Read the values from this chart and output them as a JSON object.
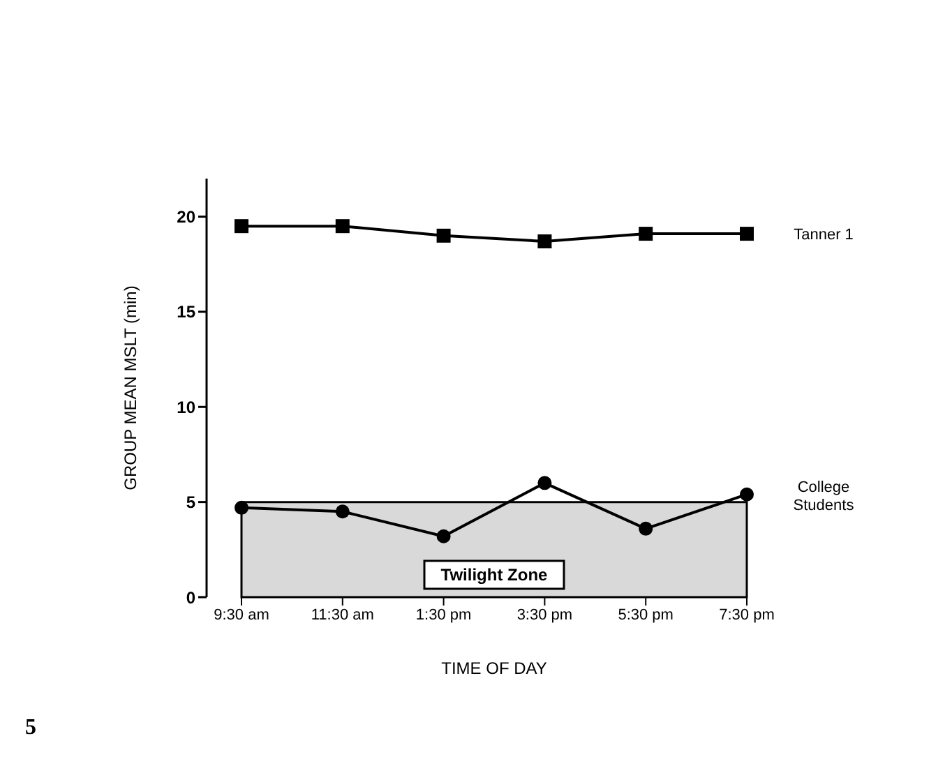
{
  "chart_data": {
    "type": "line",
    "xlabel": "TIME OF DAY",
    "ylabel": "GROUP MEAN MSLT (min)",
    "categories": [
      "9:30 am",
      "11:30 am",
      "1:30 pm",
      "3:30 pm",
      "5:30 pm",
      "7:30 pm"
    ],
    "series": [
      {
        "name": "Tanner 1",
        "color": "#000000",
        "marker": "square",
        "values": [
          19.5,
          19.5,
          19,
          18.7,
          19.1,
          19.1
        ]
      },
      {
        "name": "College Students",
        "color": "#000000",
        "marker": "circle",
        "values": [
          4.7,
          4.5,
          3.2,
          6.0,
          3.6,
          5.4
        ]
      }
    ],
    "ylim": [
      0,
      22
    ],
    "yticks": [
      0,
      5,
      10,
      15,
      20
    ],
    "bands": [
      {
        "axis": "y",
        "from": 0,
        "to": 5,
        "label": "Twilight Zone",
        "color": "#d9d9d9"
      }
    ],
    "annotations": [
      "5"
    ],
    "grid": false,
    "legend": false,
    "line_style": "solid"
  }
}
